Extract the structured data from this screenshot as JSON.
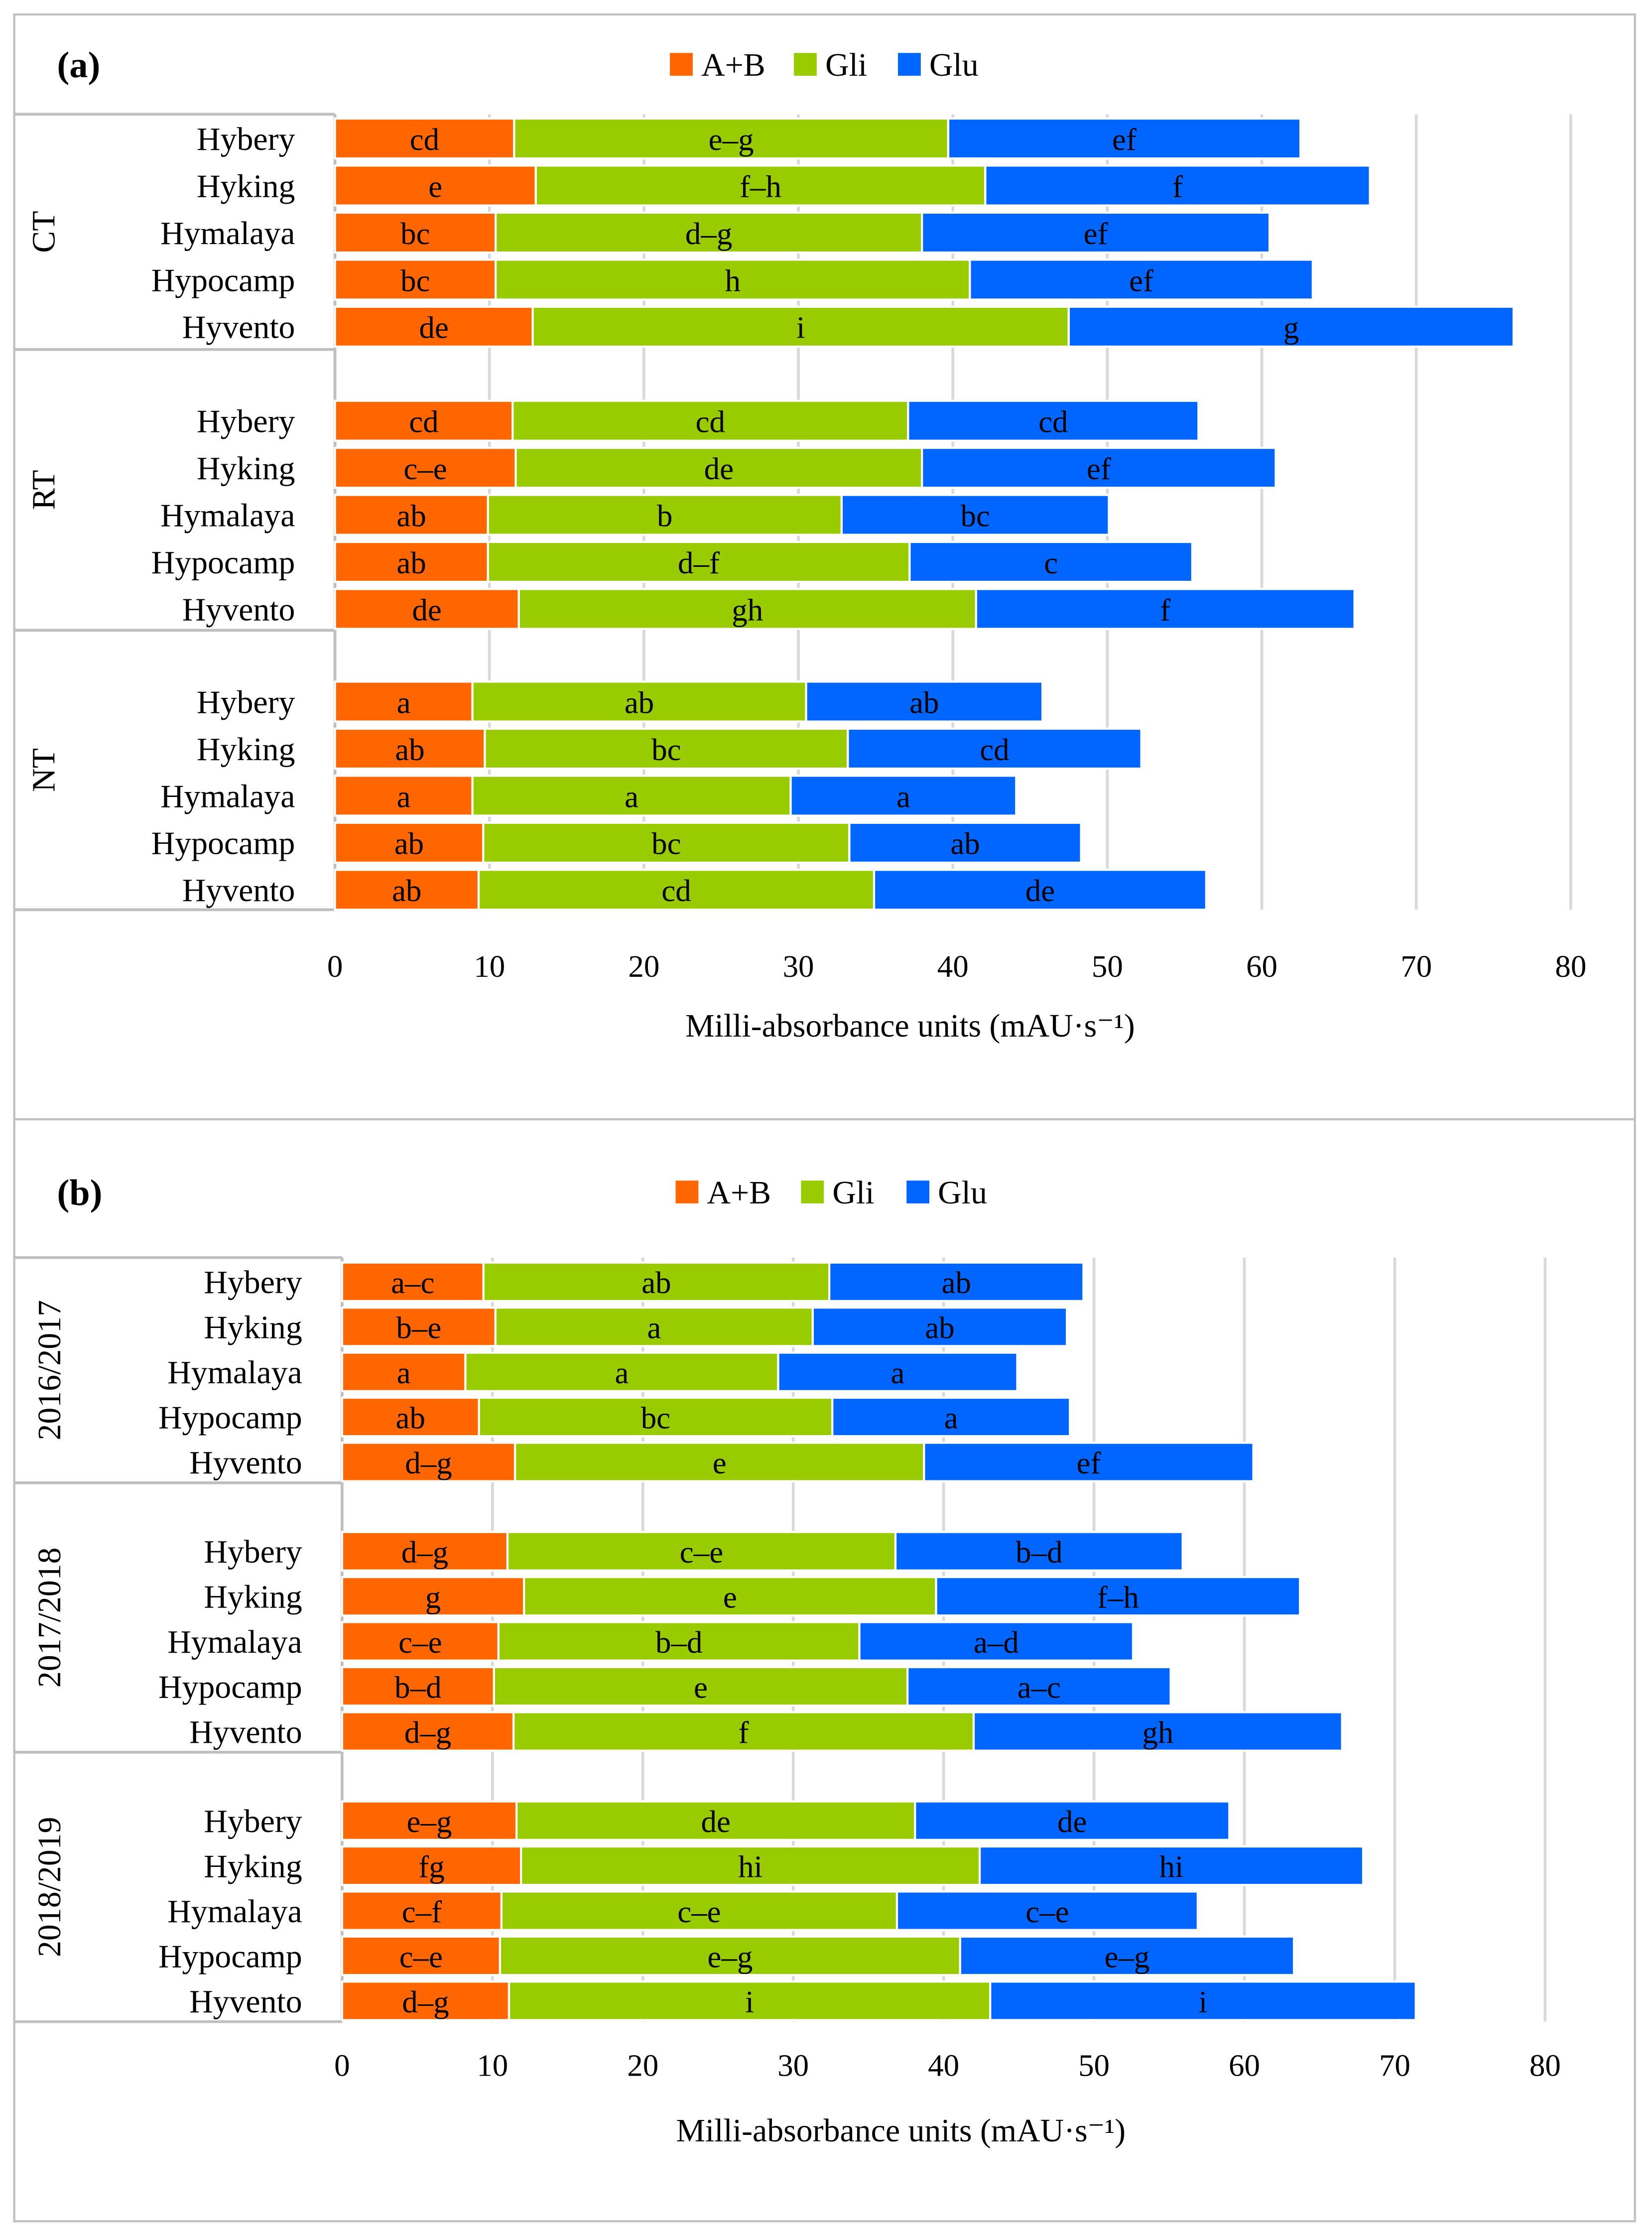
{
  "colors": {
    "A+B": "#FF6600",
    "Gli": "#99CC00",
    "Glu": "#0066FF",
    "grid": "#D9D9D9",
    "border": "#BFBFBF"
  },
  "chart_data": [
    {
      "type": "bar",
      "orientation": "horizontal-stacked",
      "title": "(a)",
      "legend": [
        "A+B",
        "Gli",
        "Glu"
      ],
      "legend_position": "top-center",
      "xlabel": "Milli-absorbance units (mAU·s⁻¹)",
      "xlim": [
        0,
        80
      ],
      "xticks": [
        "0",
        "10",
        "20",
        "30",
        "40",
        "50",
        "60",
        "70",
        "80"
      ],
      "grid": true,
      "groups": [
        {
          "name": "CT",
          "bars": [
            {
              "variety": "Hybery",
              "values": [
                11.6,
                28.1,
                22.8
              ],
              "letters": [
                "cd",
                "e–g",
                "ef"
              ]
            },
            {
              "variety": "Hyking",
              "values": [
                13.0,
                29.1,
                24.9
              ],
              "letters": [
                "e",
                "f–h",
                "f"
              ]
            },
            {
              "variety": "Hymalaya",
              "values": [
                10.4,
                27.6,
                22.5
              ],
              "letters": [
                "bc",
                "d–g",
                "ef"
              ]
            },
            {
              "variety": "Hypocamp",
              "values": [
                10.4,
                30.7,
                22.2
              ],
              "letters": [
                "bc",
                "h",
                "ef"
              ]
            },
            {
              "variety": "Hyvento",
              "values": [
                12.8,
                34.7,
                28.8
              ],
              "letters": [
                "de",
                "i",
                "g"
              ]
            }
          ]
        },
        {
          "name": "RT",
          "bars": [
            {
              "variety": "Hybery",
              "values": [
                11.5,
                25.6,
                18.8
              ],
              "letters": [
                "cd",
                "cd",
                "cd"
              ]
            },
            {
              "variety": "Hyking",
              "values": [
                11.7,
                26.3,
                22.9
              ],
              "letters": [
                "c–e",
                "de",
                "ef"
              ]
            },
            {
              "variety": "Hymalaya",
              "values": [
                9.9,
                22.9,
                17.3
              ],
              "letters": [
                "ab",
                "b",
                "bc"
              ]
            },
            {
              "variety": "Hypocamp",
              "values": [
                9.9,
                27.3,
                18.3
              ],
              "letters": [
                "ab",
                "d–f",
                "c"
              ]
            },
            {
              "variety": "Hyvento",
              "values": [
                11.9,
                29.6,
                24.5
              ],
              "letters": [
                "de",
                "gh",
                "f"
              ]
            }
          ]
        },
        {
          "name": "NT",
          "bars": [
            {
              "variety": "Hybery",
              "values": [
                8.9,
                21.6,
                15.3
              ],
              "letters": [
                "a",
                "ab",
                "ab"
              ]
            },
            {
              "variety": "Hyking",
              "values": [
                9.7,
                23.5,
                19.0
              ],
              "letters": [
                "ab",
                "bc",
                "cd"
              ]
            },
            {
              "variety": "Hymalaya",
              "values": [
                8.9,
                20.6,
                14.6
              ],
              "letters": [
                "a",
                "a",
                "a"
              ]
            },
            {
              "variety": "Hypocamp",
              "values": [
                9.6,
                23.7,
                15.0
              ],
              "letters": [
                "ab",
                "bc",
                "ab"
              ]
            },
            {
              "variety": "Hyvento",
              "values": [
                9.3,
                25.6,
                21.5
              ],
              "letters": [
                "ab",
                "cd",
                "de"
              ]
            }
          ]
        }
      ]
    },
    {
      "type": "bar",
      "orientation": "horizontal-stacked",
      "title": "(b)",
      "legend": [
        "A+B",
        "Gli",
        "Glu"
      ],
      "legend_position": "top-center",
      "xlabel": "Milli-absorbance units (mAU·s⁻¹)",
      "xlim": [
        0,
        80
      ],
      "xticks": [
        "0",
        "10",
        "20",
        "30",
        "40",
        "50",
        "60",
        "70",
        "80"
      ],
      "grid": true,
      "groups": [
        {
          "name": "2016/2017",
          "bars": [
            {
              "variety": "Hybery",
              "values": [
                9.4,
                23.0,
                16.9
              ],
              "letters": [
                "a–c",
                "ab",
                "ab"
              ]
            },
            {
              "variety": "Hyking",
              "values": [
                10.2,
                21.1,
                16.9
              ],
              "letters": [
                "b–e",
                "a",
                "ab"
              ]
            },
            {
              "variety": "Hymalaya",
              "values": [
                8.2,
                20.8,
                15.9
              ],
              "letters": [
                "a",
                "a",
                "a"
              ]
            },
            {
              "variety": "Hypocamp",
              "values": [
                9.1,
                23.5,
                15.8
              ],
              "letters": [
                "ab",
                "bc",
                "a"
              ]
            },
            {
              "variety": "Hyvento",
              "values": [
                11.5,
                27.2,
                21.9
              ],
              "letters": [
                "d–g",
                "e",
                "ef"
              ]
            }
          ]
        },
        {
          "name": "2017/2018",
          "bars": [
            {
              "variety": "Hybery",
              "values": [
                11.0,
                25.8,
                19.1
              ],
              "letters": [
                "d–g",
                "c–e",
                "b–d"
              ]
            },
            {
              "variety": "Hyking",
              "values": [
                12.1,
                27.4,
                24.2
              ],
              "letters": [
                "g",
                "e",
                "f–h"
              ]
            },
            {
              "variety": "Hymalaya",
              "values": [
                10.4,
                24.0,
                18.2
              ],
              "letters": [
                "c–e",
                "b–d",
                "a–d"
              ]
            },
            {
              "variety": "Hypocamp",
              "values": [
                10.1,
                27.5,
                17.5
              ],
              "letters": [
                "b–d",
                "e",
                "a–c"
              ]
            },
            {
              "variety": "Hyvento",
              "values": [
                11.4,
                30.6,
                24.5
              ],
              "letters": [
                "d–g",
                "f",
                "gh"
              ]
            }
          ]
        },
        {
          "name": "2018/2019",
          "bars": [
            {
              "variety": "Hybery",
              "values": [
                11.6,
                26.5,
                20.9
              ],
              "letters": [
                "e–g",
                "de",
                "de"
              ]
            },
            {
              "variety": "Hyking",
              "values": [
                11.9,
                30.5,
                25.5
              ],
              "letters": [
                "fg",
                "hi",
                "hi"
              ]
            },
            {
              "variety": "Hymalaya",
              "values": [
                10.6,
                26.3,
                20.0
              ],
              "letters": [
                "c–f",
                "c–e",
                "c–e"
              ]
            },
            {
              "variety": "Hypocamp",
              "values": [
                10.5,
                30.6,
                22.2
              ],
              "letters": [
                "c–e",
                "e–g",
                "e–g"
              ]
            },
            {
              "variety": "Hyvento",
              "values": [
                11.1,
                32.0,
                28.3
              ],
              "letters": [
                "d–g",
                "i",
                "i"
              ]
            }
          ]
        }
      ]
    }
  ]
}
